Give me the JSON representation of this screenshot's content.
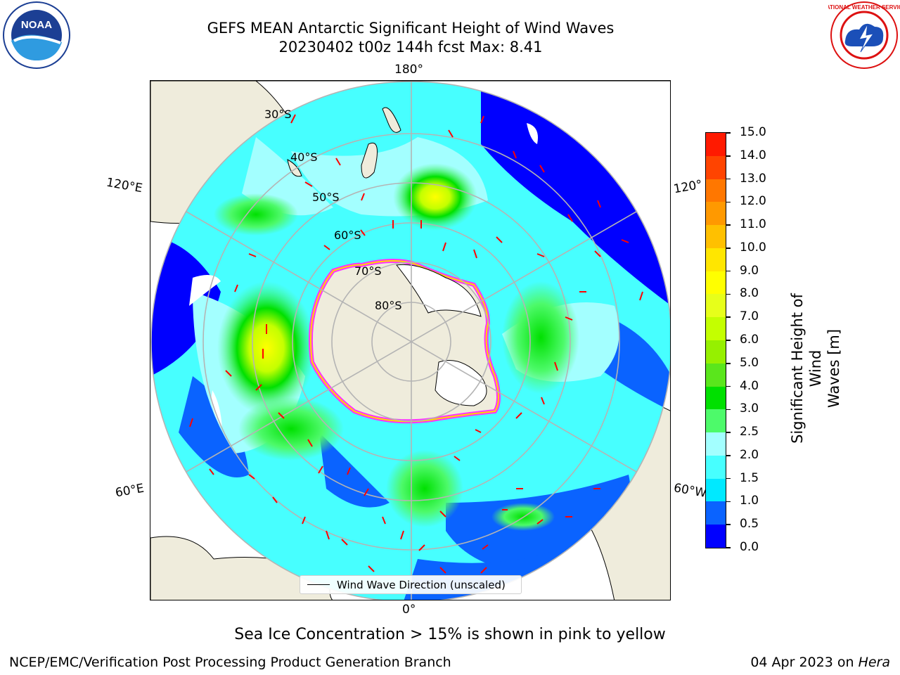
{
  "title": {
    "line1": "GEFS MEAN Antarctic Significant Height of Wind Waves",
    "line2": "20230402 t00z 144h fcst   Max: 8.41"
  },
  "logos": {
    "left": {
      "text": "NOAA",
      "icon": "noaa-logo"
    },
    "right": {
      "text": "NATIONAL WEATHER SERVICE",
      "icon": "nws-logo"
    }
  },
  "map": {
    "longitude_labels": {
      "top": "180°",
      "left": "120°E",
      "right": "120°",
      "bottom_left": "60°E",
      "bottom_right": "60°W",
      "bottom": "0°"
    },
    "latitude_labels": [
      "30°S",
      "40°S",
      "50°S",
      "60°S",
      "70°S",
      "80°S"
    ],
    "land_color": "#efecdc",
    "ocean_palette": [
      "#0000ff",
      "#0a63ff",
      "#00e9ff",
      "#47ffff",
      "#a3ffff",
      "#4dfa6a",
      "#00e000",
      "#5ae61c",
      "#c4ff00",
      "#e7ff1a",
      "#ffff00"
    ],
    "arrow_color": "#ff0000",
    "ice_edge_colors": [
      "#ff33ff",
      "#ffd700"
    ]
  },
  "legend": {
    "label": "Wind Wave Direction (unscaled)"
  },
  "colorbar": {
    "label_line1": "Significant Height of Wind",
    "label_line2": "Waves [m]",
    "ticks": [
      "0.0",
      "0.5",
      "1.0",
      "1.5",
      "2.0",
      "2.5",
      "3.0",
      "4.0",
      "5.0",
      "6.0",
      "7.0",
      "8.0",
      "9.0",
      "10.0",
      "11.0",
      "12.0",
      "13.0",
      "14.0",
      "15.0"
    ],
    "colors": [
      "#0000ff",
      "#0a63ff",
      "#00e9ff",
      "#47ffff",
      "#a3ffff",
      "#4dfa6a",
      "#00e000",
      "#5ae61c",
      "#96f000",
      "#c4ff00",
      "#e7ff1a",
      "#ffff00",
      "#ffe600",
      "#ffc000",
      "#ff9900",
      "#ff7700",
      "#ff4400",
      "#ff1a00"
    ]
  },
  "subtitle": "Sea Ice Concentration > 15% is shown in pink to yellow",
  "footer": {
    "left": "NCEP/EMC/Verification Post Processing Product Generation Branch",
    "right_date": "04 Apr 2023 on ",
    "right_machine": "Hera"
  }
}
